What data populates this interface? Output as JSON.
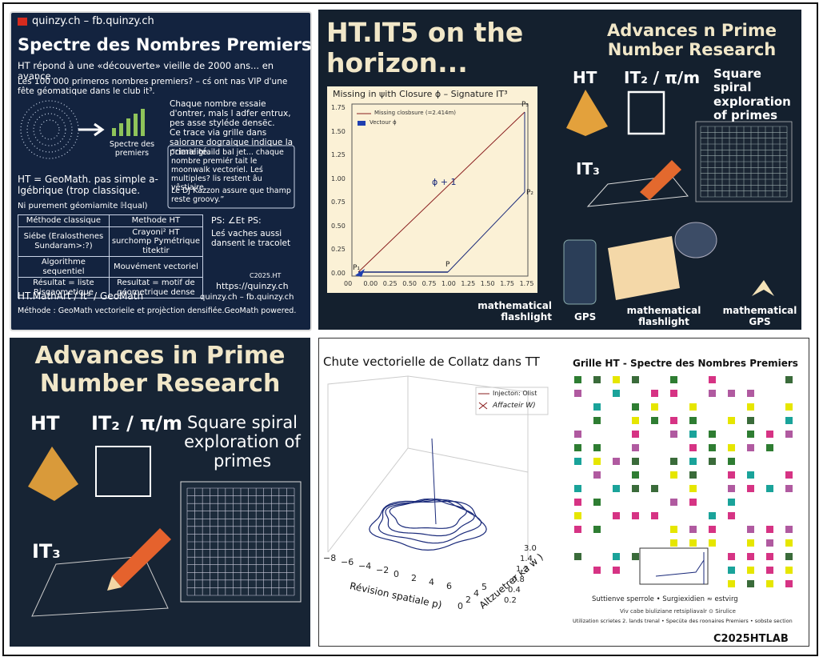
{
  "top_left": {
    "header": "quinzy.ch – fb.quinzy.ch",
    "title": "Spectre des Nombres Premiers",
    "subtitle": "HT répond à une «découverte» vieille de 2000 ans... en avance.",
    "intro": "Les 100 000 primeros nombres premiers? – cś ont nas VIP d'une fête géomatique dans le club it³.",
    "notes": [
      "Chaque nombre essaie d'ontrer, mals l adfer entrux, pes asse styléde densëc.",
      "Ce trace via grille dans saiorare dograique indique la primalité."
    ],
    "spectre_label": "Spectre des premiers",
    "quote": [
      "“ciarie graild bal jet... chaque nombre premiér tait le moonwalk vectoriel. Leś multiples? lis restent âu vêstiaire.",
      "Le DJ Kazzon assure que thamp reste groovy.”"
    ],
    "geomath": [
      "HT = GeoMath. pas simple a-lgébrique (trop classique.",
      "Ni purement géomiamite ℍqual)"
    ],
    "table": {
      "header": [
        "Méthode classique",
        "Methode HT"
      ],
      "rows": [
        [
          "Siébe (Eralosthenes Sundaram>:?)",
          "Crayoni² HT surchomp Pymétrique titektir"
        ],
        [
          "Algorithme sequentiel",
          "Mouvément vectoriel"
        ],
        [
          "Résultat = liste Risqaometique",
          "Resultat = motif de géometrique dense"
        ]
      ]
    },
    "ps": [
      "PS: ∠Et PS:",
      "Leś vaches aussi dansent le tracolet"
    ],
    "copyright": "C2025.HT",
    "url": "https://quinzy.ch",
    "signature": "HT.MathArt / It³ / GeoMath",
    "signature_link": "quinzy.ch – fb.quinzy.ch",
    "method": "Méthode : GeoMath vectorieile et projèction densifiée.GeoMath powered."
  },
  "top_right": {
    "title": "HT.IT5 on the horizon...",
    "plot": {
      "title": "Missing in ψith Closure ϕ – Signature IT³",
      "legend": [
        "Missing closbsure (=2.414m)",
        "Vectour ϕ"
      ],
      "annotation": "ϕ + 1",
      "points": [
        "P₃",
        "P₂",
        "P₁",
        "P"
      ],
      "xticks": [
        "00",
        "0.00",
        "0.25",
        "0.50",
        "0.75",
        "1.00",
        "1.25",
        "1.50",
        "1.75",
        "1.75"
      ],
      "yticks": [
        "1.75",
        "1.50",
        "1.25",
        "1.00",
        "0.75",
        "0.50",
        "0.25",
        "0.00"
      ]
    },
    "flashlight_caption": "mathematical flashlight",
    "heading": "Advances n Prime Number Research",
    "ht": "HT",
    "it2": "IT₂ / π/m",
    "spiral": "Square spiral exploration of primes",
    "it3": "IT₃",
    "gps": "GPS",
    "flashlight": "mathematical flashlight",
    "math_gps": "mathematical GPS"
  },
  "bottom_left": {
    "title": "Advances in Prime Number Research",
    "ht": "HT",
    "it2": "IT₂ / π/m",
    "spiral": "Square spiral exploration of primes",
    "it3": "IT₃"
  },
  "bottom_right": {
    "plot3d": {
      "title": "Chute vectorielle de Collatz dans TT",
      "legend": [
        "Injecton: Olist",
        "Affacteir W)"
      ],
      "xticks": [
        "−8",
        "−6",
        "−4",
        "−2",
        "0",
        "2",
        "4",
        "6"
      ],
      "yticks": [
        "0",
        "2",
        "4",
        "5"
      ],
      "zticks": [
        "0.2",
        "0.4",
        "0.8",
        "1.2",
        "1.4",
        "3.0"
      ],
      "xlabel": "Révision spatiale p)",
      "ylabel": "Altzuetrer ĸa w )"
    },
    "grid_title": "Grille HT - Spectre des Nombres Premiers",
    "footer": [
      "Suttienve sperrole • Surgiexidien ≈ estvirg",
      "Viv cabe biuliziane retsipliavalr ⊙ Sirulice",
      "Utilization scrietes 2. lands trenal • Specüte des roonaires Premiers • sobste section"
    ],
    "credit": "C2025HTLAB"
  }
}
